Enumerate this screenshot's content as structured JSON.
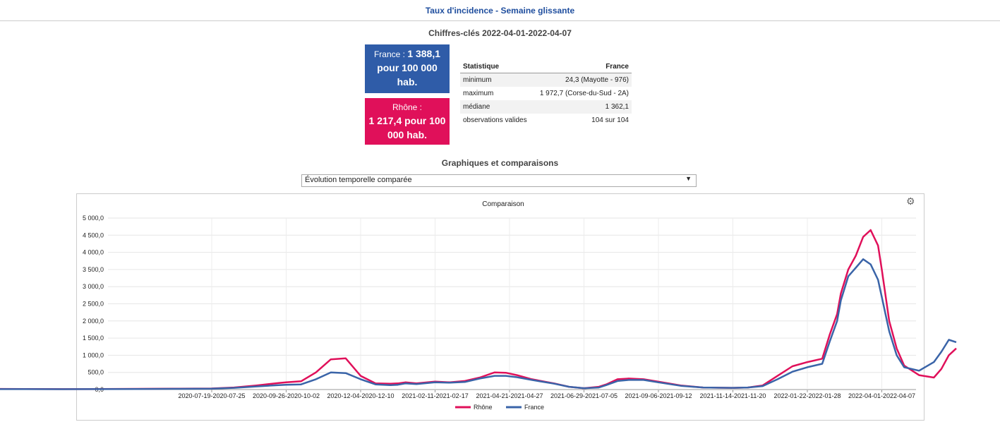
{
  "header": {
    "title": "Taux d'incidence - Semaine glissante"
  },
  "key_figures": {
    "title": "Chiffres-clés 2022-04-01-2022-04-07",
    "france_label": "France : ",
    "france_value": "1 388,1",
    "france_suffix": "pour 100 000 hab.",
    "rhone_label": "Rhône :",
    "rhone_value": "1 217,4 pour 100 000 hab.",
    "france_color": "#2f5ca8",
    "rhone_color": "#e0105a"
  },
  "stats_table": {
    "headers": [
      "Statistique",
      "France"
    ],
    "rows": [
      [
        "minimum",
        "24,3 (Mayotte - 976)"
      ],
      [
        "maximum",
        "1 972,7 (Corse-du-Sud - 2A)"
      ],
      [
        "médiane",
        "1 362,1"
      ],
      [
        "observations valides",
        "104 sur 104"
      ]
    ]
  },
  "graphs": {
    "title": "Graphiques et comparaisons",
    "select_value": "Évolution temporelle comparée",
    "gear_icon": "gear-icon"
  },
  "chart_data": {
    "type": "line",
    "title": "Comparaison",
    "ylim": [
      0,
      5000
    ],
    "yticks": [
      "0,0",
      "500,0",
      "1 000,0",
      "1 500,0",
      "2 000,0",
      "2 500,0",
      "3 000,0",
      "3 500,0",
      "4 000,0",
      "4 500,0",
      "5 000,0"
    ],
    "categories": [
      "2020-07-19-2020-07-25",
      "2020-09-26-2020-10-02",
      "2020-12-04-2020-12-10",
      "2021-02-11-2021-02-17",
      "2021-04-21-2021-04-27",
      "2021-06-29-2021-07-05",
      "2021-09-06-2021-09-12",
      "2021-11-14-2021-11-20",
      "2022-01-22-2022-01-28",
      "2022-04-01-2022-04-07"
    ],
    "x": [
      -3.0,
      -2.5,
      -2.0,
      -1.5,
      -1.0,
      -0.5,
      0.0,
      0.3,
      0.6,
      0.9,
      1.0,
      1.2,
      1.4,
      1.6,
      1.8,
      2.0,
      2.2,
      2.4,
      2.5,
      2.6,
      2.75,
      3.0,
      3.2,
      3.4,
      3.6,
      3.8,
      3.95,
      4.1,
      4.3,
      4.6,
      4.8,
      5.0,
      5.2,
      5.3,
      5.45,
      5.6,
      5.8,
      6.0,
      6.3,
      6.6,
      7.0,
      7.2,
      7.4,
      7.6,
      7.8,
      8.0,
      8.2,
      8.3,
      8.4,
      8.45,
      8.55,
      8.65,
      8.75,
      8.85,
      8.95,
      9.0,
      9.1,
      9.2,
      9.3,
      9.5,
      9.7,
      9.8,
      9.9,
      10.0
    ],
    "series": [
      {
        "name": "Rhône",
        "color": "#e0105a",
        "values": [
          20,
          15,
          12,
          15,
          20,
          25,
          30,
          60,
          120,
          190,
          210,
          240,
          500,
          880,
          910,
          400,
          180,
          170,
          180,
          210,
          180,
          230,
          210,
          250,
          350,
          500,
          490,
          420,
          300,
          180,
          80,
          40,
          80,
          150,
          300,
          320,
          300,
          230,
          120,
          60,
          50,
          60,
          120,
          400,
          680,
          800,
          900,
          1600,
          2200,
          2800,
          3500,
          3900,
          4450,
          4650,
          4200,
          3500,
          2000,
          1200,
          700,
          420,
          350,
          600,
          1000,
          1200
        ]
      },
      {
        "name": "France",
        "color": "#3a64a8",
        "values": [
          15,
          12,
          10,
          12,
          15,
          20,
          25,
          50,
          90,
          130,
          140,
          150,
          300,
          500,
          480,
          300,
          150,
          130,
          140,
          180,
          160,
          210,
          200,
          220,
          320,
          400,
          400,
          360,
          280,
          170,
          80,
          40,
          60,
          130,
          250,
          280,
          280,
          210,
          110,
          60,
          50,
          60,
          100,
          300,
          520,
          650,
          750,
          1400,
          2000,
          2600,
          3300,
          3550,
          3800,
          3650,
          3200,
          2700,
          1700,
          1000,
          650,
          550,
          800,
          1100,
          1450,
          1380
        ]
      }
    ],
    "legend": "bottom-center"
  }
}
